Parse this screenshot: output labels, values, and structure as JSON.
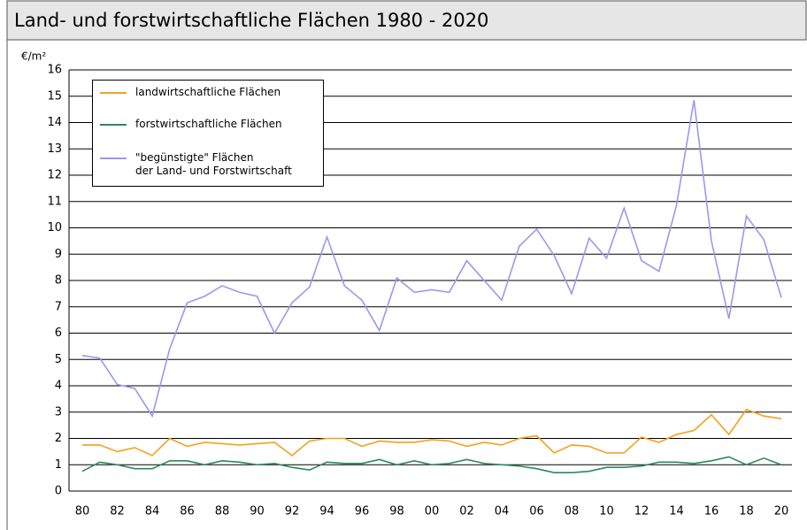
{
  "chart_data": {
    "type": "line",
    "title": "Land- und forstwirtschaftliche Flächen  1980 - 2020",
    "ylabel": "€/m²",
    "categories": [
      "80",
      null,
      "82",
      null,
      "84",
      null,
      "86",
      null,
      "88",
      null,
      "90",
      null,
      "92",
      null,
      "94",
      null,
      "96",
      null,
      "98",
      null,
      "00",
      null,
      "02",
      null,
      "04",
      null,
      "06",
      null,
      "08",
      null,
      "10",
      null,
      "12",
      null,
      "14",
      null,
      "16",
      null,
      "18",
      null,
      "20"
    ],
    "series": [
      {
        "name": "landwirtschaftliche Flächen",
        "color": "#f4a11e",
        "values": [
          1.75,
          1.75,
          1.5,
          1.65,
          1.35,
          2.0,
          1.7,
          1.85,
          1.8,
          1.75,
          1.8,
          1.85,
          1.35,
          1.9,
          2.0,
          2.0,
          1.7,
          1.9,
          1.85,
          1.85,
          1.95,
          1.9,
          1.7,
          1.85,
          1.75,
          2.0,
          2.1,
          1.45,
          1.75,
          1.7,
          1.45,
          1.45,
          2.05,
          1.85,
          2.15,
          2.3,
          2.9,
          2.15,
          3.1,
          2.85,
          2.75
        ]
      },
      {
        "name": "forstwirtschaftliche Flächen",
        "color": "#2a8a5a",
        "values": [
          0.75,
          1.1,
          1.0,
          0.85,
          0.85,
          1.15,
          1.15,
          1.0,
          1.15,
          1.1,
          1.0,
          1.05,
          0.9,
          0.8,
          1.1,
          1.05,
          1.05,
          1.2,
          1.0,
          1.15,
          1.0,
          1.05,
          1.2,
          1.05,
          1.0,
          0.95,
          0.85,
          0.7,
          0.7,
          0.75,
          0.9,
          0.9,
          0.95,
          1.1,
          1.1,
          1.05,
          1.15,
          1.3,
          1.0,
          1.25,
          1.0
        ]
      },
      {
        "name": "\"begünstigte\" Flächen\nder Land- und Forstwirtschaft",
        "color": "#9999ee",
        "values": [
          5.15,
          5.05,
          4.05,
          3.9,
          2.85,
          5.4,
          7.15,
          7.4,
          7.8,
          7.55,
          7.4,
          6.0,
          7.15,
          7.75,
          9.65,
          7.8,
          7.25,
          6.1,
          8.1,
          7.55,
          7.65,
          7.55,
          8.75,
          8.0,
          7.25,
          9.3,
          9.95,
          8.95,
          7.5,
          9.6,
          8.85,
          10.75,
          8.75,
          8.35,
          10.85,
          14.85,
          9.5,
          6.55,
          10.45,
          9.55,
          7.35
        ]
      }
    ],
    "ylim": [
      0,
      16
    ],
    "yticks": [
      0,
      1,
      2,
      3,
      4,
      5,
      6,
      7,
      8,
      9,
      10,
      11,
      12,
      13,
      14,
      15,
      16
    ],
    "grid": true
  }
}
